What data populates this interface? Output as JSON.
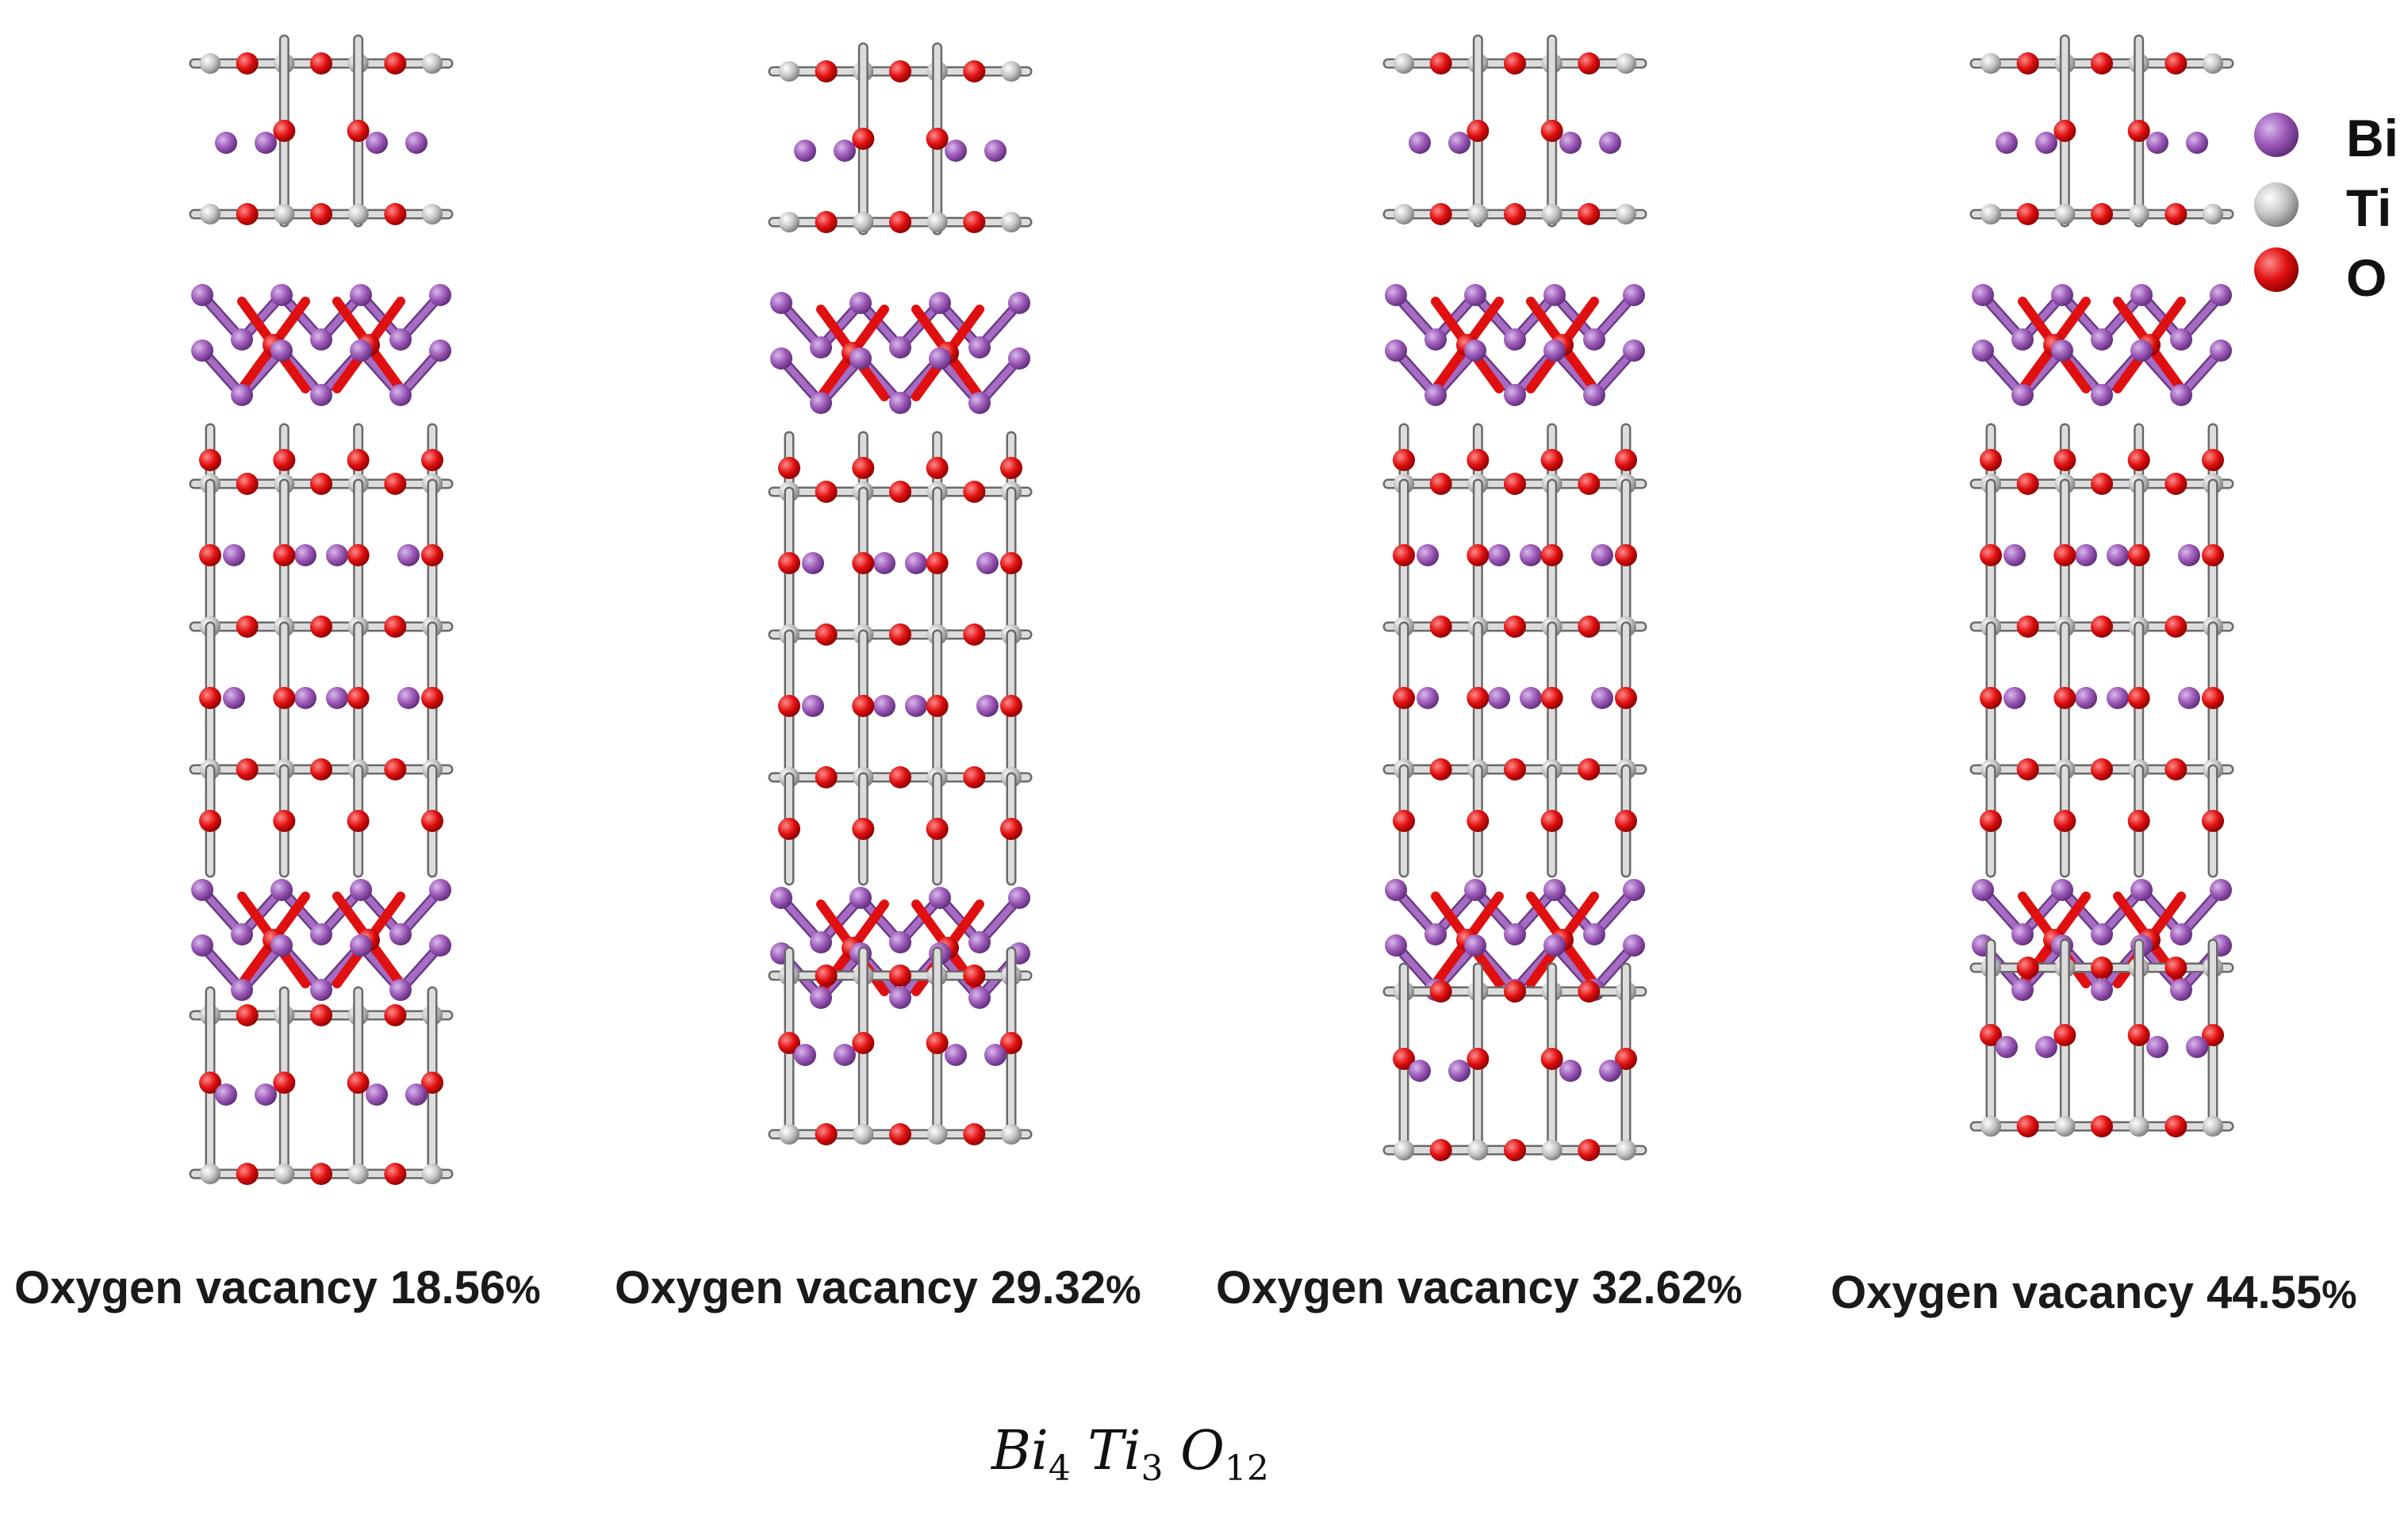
{
  "captions": [
    {
      "prefix": "Oxygen vacancy 18.56",
      "pct": "%"
    },
    {
      "prefix": "Oxygen vacancy 29.32",
      "pct": "%"
    },
    {
      "prefix": "Oxygen vacancy 32.62",
      "pct": "%"
    },
    {
      "prefix": "Oxygen vacancy 44.55",
      "pct": "%"
    }
  ],
  "legend": [
    {
      "label": "Bi",
      "color": "#9b59b6"
    },
    {
      "label": "Ti",
      "color": "#c8c8c8"
    },
    {
      "label": "O",
      "color": "#e01010"
    }
  ],
  "formula": {
    "el1": "Bi",
    "el1_rest": "",
    "n1": "4",
    "el2": "Ti",
    "n2": "3",
    "el3": "O",
    "n3": "12"
  },
  "colors": {
    "bismuth": "#9b59b6",
    "titanium": "#c8c8c8",
    "oxygen": "#e01010",
    "bond_light": "#d0d0d0"
  }
}
